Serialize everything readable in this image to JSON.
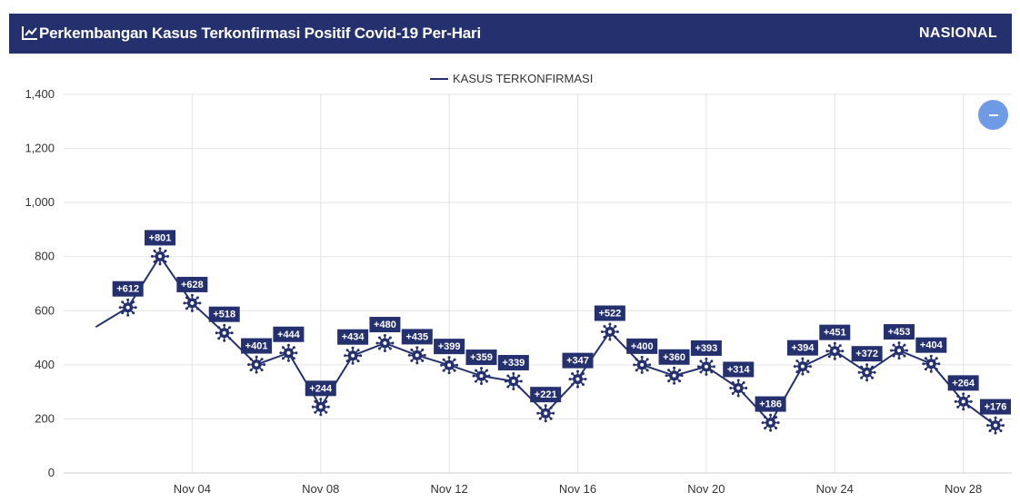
{
  "header": {
    "title": "Perkembangan Kasus Terkonfirmasi Positif Covid-19 Per-Hari",
    "scope": "NASIONAL",
    "icon": "line-chart-icon"
  },
  "colors": {
    "header_bg": "#25306f",
    "line": "#25306f",
    "label_bg": "#25306f",
    "zoom_button": "#6f9ae6"
  },
  "controls": {
    "zoom_icon": "minus-icon"
  },
  "chart_data": {
    "type": "line",
    "series": [
      {
        "name": "KASUS TERKONFIRMASI",
        "points": [
          {
            "date": "2020-11-01",
            "value": 540
          },
          {
            "date": "2020-11-02",
            "value": 612,
            "label": "+612"
          },
          {
            "date": "2020-11-03",
            "value": 801,
            "label": "+801"
          },
          {
            "date": "2020-11-04",
            "value": 628,
            "label": "+628"
          },
          {
            "date": "2020-11-05",
            "value": 518,
            "label": "+518"
          },
          {
            "date": "2020-11-06",
            "value": 401,
            "label": "+401"
          },
          {
            "date": "2020-11-07",
            "value": 444,
            "label": "+444"
          },
          {
            "date": "2020-11-08",
            "value": 244,
            "label": "+244"
          },
          {
            "date": "2020-11-09",
            "value": 434,
            "label": "+434"
          },
          {
            "date": "2020-11-10",
            "value": 480,
            "label": "+480"
          },
          {
            "date": "2020-11-11",
            "value": 435,
            "label": "+435"
          },
          {
            "date": "2020-11-12",
            "value": 399,
            "label": "+399"
          },
          {
            "date": "2020-11-13",
            "value": 359,
            "label": "+359"
          },
          {
            "date": "2020-11-14",
            "value": 339,
            "label": "+339"
          },
          {
            "date": "2020-11-15",
            "value": 221,
            "label": "+221"
          },
          {
            "date": "2020-11-16",
            "value": 347,
            "label": "+347"
          },
          {
            "date": "2020-11-17",
            "value": 522,
            "label": "+522"
          },
          {
            "date": "2020-11-18",
            "value": 400,
            "label": "+400"
          },
          {
            "date": "2020-11-19",
            "value": 360,
            "label": "+360"
          },
          {
            "date": "2020-11-20",
            "value": 393,
            "label": "+393"
          },
          {
            "date": "2020-11-21",
            "value": 314,
            "label": "+314"
          },
          {
            "date": "2020-11-22",
            "value": 186,
            "label": "+186"
          },
          {
            "date": "2020-11-23",
            "value": 394,
            "label": "+394"
          },
          {
            "date": "2020-11-24",
            "value": 451,
            "label": "+451"
          },
          {
            "date": "2020-11-25",
            "value": 372,
            "label": "+372"
          },
          {
            "date": "2020-11-26",
            "value": 453,
            "label": "+453"
          },
          {
            "date": "2020-11-27",
            "value": 404,
            "label": "+404"
          },
          {
            "date": "2020-11-28",
            "value": 264,
            "label": "+264"
          },
          {
            "date": "2020-11-29",
            "value": 176,
            "label": "+176"
          }
        ]
      }
    ],
    "xlim": [
      "2020-10-31",
      "2020-11-29"
    ],
    "x_ticks": [
      {
        "date": "2020-11-04",
        "label": "Nov 04"
      },
      {
        "date": "2020-11-08",
        "label": "Nov 08"
      },
      {
        "date": "2020-11-12",
        "label": "Nov 12"
      },
      {
        "date": "2020-11-16",
        "label": "Nov 16"
      },
      {
        "date": "2020-11-20",
        "label": "Nov 20"
      },
      {
        "date": "2020-11-24",
        "label": "Nov 24"
      },
      {
        "date": "2020-11-28",
        "label": "Nov 28"
      }
    ],
    "y_ticks": [
      {
        "value": 0,
        "label": "0"
      },
      {
        "value": 200,
        "label": "200"
      },
      {
        "value": 400,
        "label": "400"
      },
      {
        "value": 600,
        "label": "600"
      },
      {
        "value": 800,
        "label": "800"
      },
      {
        "value": 1000,
        "label": "1,000"
      },
      {
        "value": 1200,
        "label": "1,200"
      },
      {
        "value": 1400,
        "label": "1,400"
      }
    ],
    "ylim": [
      0,
      1400
    ],
    "grid": true,
    "legend_position": "top-center",
    "marker": "virus-icon"
  }
}
